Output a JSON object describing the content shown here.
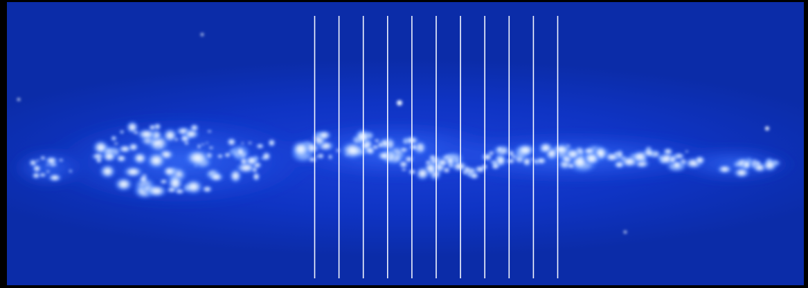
{
  "image": {
    "colors": {
      "background": "#000000",
      "sky": "#0d33c0",
      "sky_dark": "#0a2aa3",
      "emission_glow": "#3f7cff",
      "emission_bright": "#e9f4ff",
      "slit_lines": "#f4f7ff"
    },
    "slit_count": 11
  }
}
